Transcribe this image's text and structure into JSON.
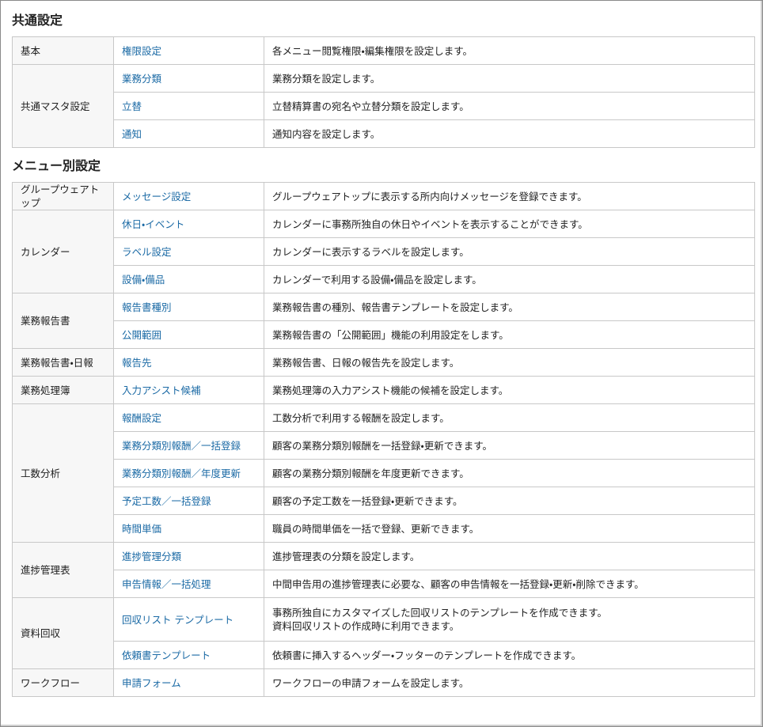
{
  "sections": [
    {
      "title": "共通設定",
      "groups": [
        {
          "name": "基本",
          "items": [
            {
              "label": "権限設定",
              "description": "各メニュー閲覧権限・編集権限を設定します。"
            }
          ]
        },
        {
          "name": "共通マスタ設定",
          "items": [
            {
              "label": "業務分類",
              "description": "業務分類を設定します。"
            },
            {
              "label": "立替",
              "description": "立替精算書の宛名や立替分類を設定します。"
            },
            {
              "label": "通知",
              "description": "通知内容を設定します。"
            }
          ]
        }
      ]
    },
    {
      "title": "メニュー別設定",
      "groups": [
        {
          "name": "グループウェアトップ",
          "items": [
            {
              "label": "メッセージ設定",
              "description": "グループウェアトップに表示する所内向けメッセージを登録できます。"
            }
          ]
        },
        {
          "name": "カレンダー",
          "items": [
            {
              "label": "休日・イベント",
              "description": "カレンダーに事務所独自の休日やイベントを表示することができます。"
            },
            {
              "label": "ラベル設定",
              "description": "カレンダーに表示するラベルを設定します。"
            },
            {
              "label": "設備・備品",
              "description": "カレンダーで利用する設備・備品を設定します。"
            }
          ]
        },
        {
          "name": "業務報告書",
          "items": [
            {
              "label": "報告書種別",
              "description": "業務報告書の種別、報告書テンプレートを設定します。"
            },
            {
              "label": "公開範囲",
              "description": "業務報告書の「公開範囲」機能の利用設定をします。"
            }
          ]
        },
        {
          "name": "業務報告書・日報",
          "items": [
            {
              "label": "報告先",
              "description": "業務報告書、日報の報告先を設定します。"
            }
          ]
        },
        {
          "name": "業務処理簿",
          "items": [
            {
              "label": "入力アシスト候補",
              "description": "業務処理簿の入力アシスト機能の候補を設定します。"
            }
          ]
        },
        {
          "name": "工数分析",
          "items": [
            {
              "label": "報酬設定",
              "description": "工数分析で利用する報酬を設定します。"
            },
            {
              "label": "業務分類別報酬／一括登録",
              "description": "顧客の業務分類別報酬を一括登録・更新できます。"
            },
            {
              "label": "業務分類別報酬／年度更新",
              "description": "顧客の業務分類別報酬を年度更新できます。"
            },
            {
              "label": "予定工数／一括登録",
              "description": "顧客の予定工数を一括登録・更新できます。"
            },
            {
              "label": "時間単価",
              "description": "職員の時間単価を一括で登録、更新できます。"
            }
          ]
        },
        {
          "name": "進捗管理表",
          "items": [
            {
              "label": "進捗管理分類",
              "description": "進捗管理表の分類を設定します。"
            },
            {
              "label": "申告情報／一括処理",
              "description": "中間申告用の進捗管理表に必要な、顧客の申告情報を一括登録・更新・削除できます。"
            }
          ]
        },
        {
          "name": "資料回収",
          "items": [
            {
              "label": "回収リスト テンプレート",
              "description": "事務所独自にカスタマイズした回収リストのテンプレートを作成できます。\n資料回収リストの作成時に利用できます。"
            },
            {
              "label": "依頼書テンプレート",
              "description": "依頼書に挿入するヘッダー・フッターのテンプレートを作成できます。"
            }
          ]
        },
        {
          "name": "ワークフロー",
          "items": [
            {
              "label": "申請フォーム",
              "description": "ワークフローの申請フォームを設定します。"
            }
          ]
        }
      ]
    }
  ]
}
